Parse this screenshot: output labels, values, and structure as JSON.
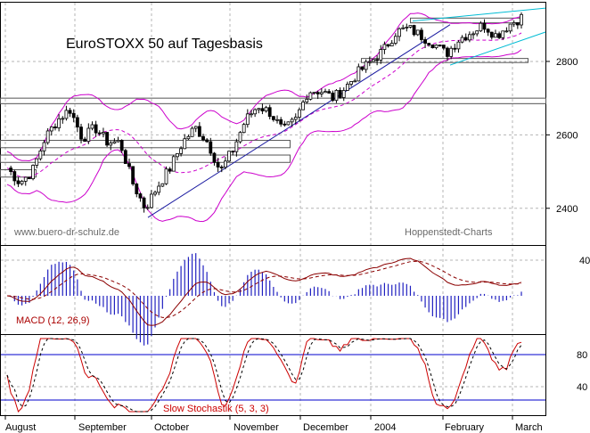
{
  "title": "EuroSTOXX 50 auf Tagesbasis",
  "watermark_left": "www.buero-dr-schulz.de",
  "watermark_right": "Hoppenstedt-Charts",
  "chart_data": [
    {
      "type": "candlestick",
      "title": "EuroSTOXX 50 auf Tagesbasis",
      "x_labels": [
        "August",
        "September",
        "October",
        "November",
        "December",
        "2004",
        "February",
        "March"
      ],
      "y_ticks": [
        2400,
        2600,
        2800
      ],
      "ylim": [
        2300,
        2960
      ],
      "grid": true,
      "close_anchors": [
        2510,
        2470,
        2500,
        2590,
        2640,
        2670,
        2590,
        2620,
        2580,
        2580,
        2470,
        2400,
        2460,
        2510,
        2580,
        2620,
        2580,
        2500,
        2560,
        2640,
        2680,
        2660,
        2610,
        2640,
        2720,
        2720,
        2700,
        2730,
        2770,
        2800,
        2830,
        2880,
        2890,
        2870,
        2850,
        2820,
        2860,
        2880,
        2900,
        2870,
        2900,
        2920
      ],
      "overlays": [
        "Bollinger bands",
        "moving average",
        "trend lines",
        "horizontal support/resistance boxes"
      ]
    },
    {
      "type": "line",
      "title": "MACD (12, 26,9)",
      "y_ticks": [
        40
      ],
      "series": [
        "MACD",
        "signal",
        "histogram"
      ]
    },
    {
      "type": "line",
      "title": "Slow Stochastik (5, 3, 3)",
      "y_ticks": [
        80,
        40
      ],
      "series": [
        "%K",
        "%D"
      ]
    }
  ],
  "colors": {
    "candles": "#000000",
    "bands": "#cc00cc",
    "moving_average": "#cc00cc",
    "trend_lower": "#1a1aa0",
    "trend_upper": "#00bcd4",
    "macd_line": "#8b0000",
    "macd_histogram": "#2020c0",
    "stoch_line": "#cc0000",
    "ref_line": "#0000cc"
  }
}
